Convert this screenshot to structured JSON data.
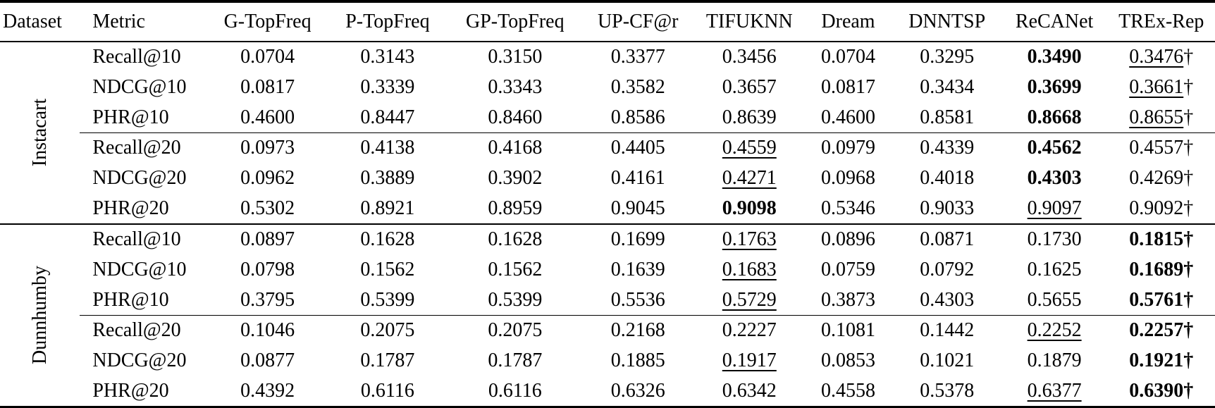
{
  "table": {
    "columns": [
      "Dataset",
      "Metric",
      "G-TopFreq",
      "P-TopFreq",
      "GP-TopFreq",
      "UP-CF@r",
      "TIFUKNN",
      "Dream",
      "DNNTSP",
      "ReCANet",
      "TREx-Rep"
    ],
    "note_marks": {
      "dagger": "†"
    },
    "datasets": [
      {
        "name": "Instacart",
        "blocks": [
          {
            "rows": [
              {
                "metric": "Recall@10",
                "values": [
                  "0.0704",
                  "0.3143",
                  "0.3150",
                  "0.3377",
                  "0.3456",
                  "0.0704",
                  "0.3295",
                  "0.3490",
                  "0.3476†"
                ],
                "bold": 7,
                "underline": 8
              },
              {
                "metric": "NDCG@10",
                "values": [
                  "0.0817",
                  "0.3339",
                  "0.3343",
                  "0.3582",
                  "0.3657",
                  "0.0817",
                  "0.3434",
                  "0.3699",
                  "0.3661†"
                ],
                "bold": 7,
                "underline": 8
              },
              {
                "metric": "PHR@10",
                "values": [
                  "0.4600",
                  "0.8447",
                  "0.8460",
                  "0.8586",
                  "0.8639",
                  "0.4600",
                  "0.8581",
                  "0.8668",
                  "0.8655†"
                ],
                "bold": 7,
                "underline": 8
              }
            ]
          },
          {
            "rows": [
              {
                "metric": "Recall@20",
                "values": [
                  "0.0973",
                  "0.4138",
                  "0.4168",
                  "0.4405",
                  "0.4559",
                  "0.0979",
                  "0.4339",
                  "0.4562",
                  "0.4557†"
                ],
                "bold": 7,
                "underline": 4
              },
              {
                "metric": "NDCG@20",
                "values": [
                  "0.0962",
                  "0.3889",
                  "0.3902",
                  "0.4161",
                  "0.4271",
                  "0.0968",
                  "0.4018",
                  "0.4303",
                  "0.4269†"
                ],
                "bold": 7,
                "underline": 4
              },
              {
                "metric": "PHR@20",
                "values": [
                  "0.5302",
                  "0.8921",
                  "0.8959",
                  "0.9045",
                  "0.9098",
                  "0.5346",
                  "0.9033",
                  "0.9097",
                  "0.9092†"
                ],
                "bold": 4,
                "underline": 7
              }
            ]
          }
        ]
      },
      {
        "name": "Dunnhumby",
        "blocks": [
          {
            "rows": [
              {
                "metric": "Recall@10",
                "values": [
                  "0.0897",
                  "0.1628",
                  "0.1628",
                  "0.1699",
                  "0.1763",
                  "0.0896",
                  "0.0871",
                  "0.1730",
                  "0.1815†"
                ],
                "bold": 8,
                "underline": 4
              },
              {
                "metric": "NDCG@10",
                "values": [
                  "0.0798",
                  "0.1562",
                  "0.1562",
                  "0.1639",
                  "0.1683",
                  "0.0759",
                  "0.0792",
                  "0.1625",
                  "0.1689†"
                ],
                "bold": 8,
                "underline": 4
              },
              {
                "metric": "PHR@10",
                "values": [
                  "0.3795",
                  "0.5399",
                  "0.5399",
                  "0.5536",
                  "0.5729",
                  "0.3873",
                  "0.4303",
                  "0.5655",
                  "0.5761†"
                ],
                "bold": 8,
                "underline": 4
              }
            ]
          },
          {
            "rows": [
              {
                "metric": "Recall@20",
                "values": [
                  "0.1046",
                  "0.2075",
                  "0.2075",
                  "0.2168",
                  "0.2227",
                  "0.1081",
                  "0.1442",
                  "0.2252",
                  "0.2257†"
                ],
                "bold": 8,
                "underline": 7
              },
              {
                "metric": "NDCG@20",
                "values": [
                  "0.0877",
                  "0.1787",
                  "0.1787",
                  "0.1885",
                  "0.1917",
                  "0.0853",
                  "0.1021",
                  "0.1879",
                  "0.1921†"
                ],
                "bold": 8,
                "underline": 4
              },
              {
                "metric": "PHR@20",
                "values": [
                  "0.4392",
                  "0.6116",
                  "0.6116",
                  "0.6326",
                  "0.6342",
                  "0.4558",
                  "0.5378",
                  "0.6377",
                  "0.6390†"
                ],
                "bold": 8,
                "underline": 7
              }
            ]
          }
        ]
      }
    ]
  }
}
